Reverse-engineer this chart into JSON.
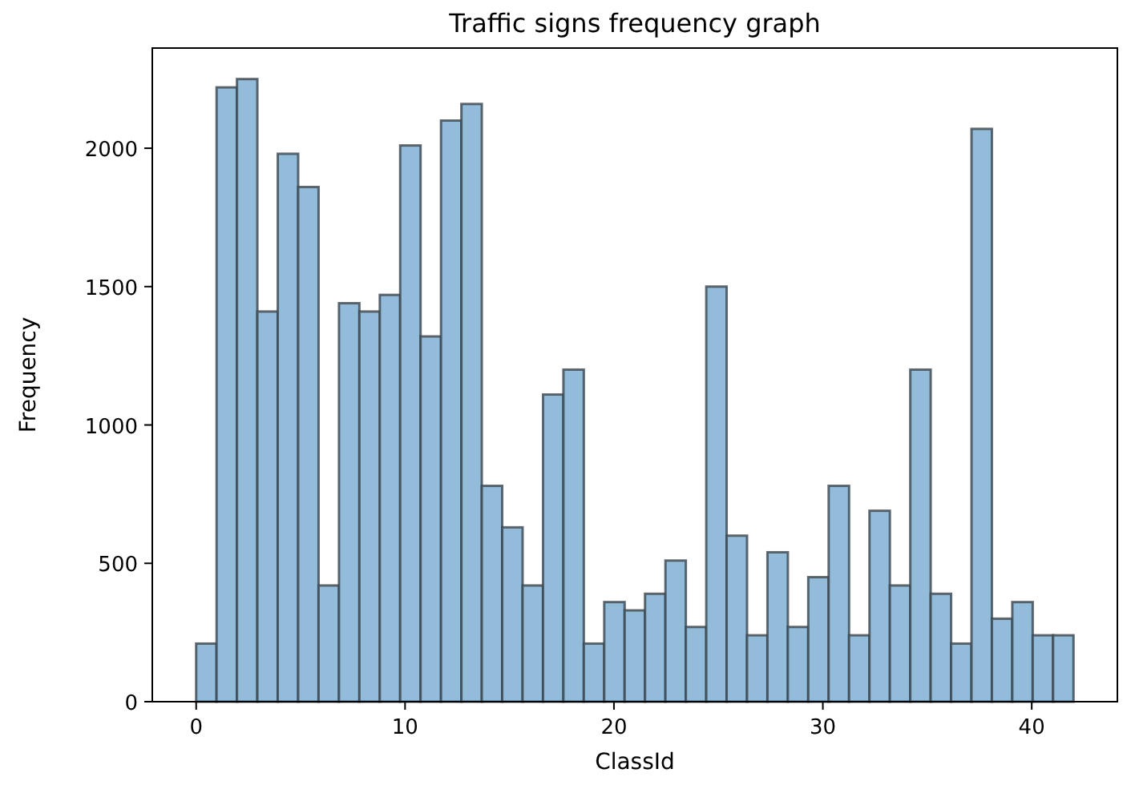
{
  "chart_data": {
    "type": "histogram",
    "title": "Traffic signs frequency graph",
    "xlabel": "ClassId",
    "ylabel": "Frequency",
    "color": "#93bcdb",
    "bins": [
      0,
      0.977,
      1.953,
      2.93,
      3.907,
      4.884,
      5.86,
      6.837,
      7.814,
      8.791,
      9.767,
      10.744,
      11.721,
      12.698,
      13.674,
      14.651,
      15.628,
      16.605,
      17.581,
      18.558,
      19.535,
      20.512,
      21.488,
      22.465,
      23.442,
      24.419,
      25.395,
      26.372,
      27.349,
      28.326,
      29.302,
      30.279,
      31.256,
      32.233,
      33.209,
      34.186,
      35.163,
      36.14,
      37.116,
      38.093,
      39.07,
      40.047,
      41.023,
      42
    ],
    "values": [
      210,
      2220,
      2250,
      1410,
      1980,
      1860,
      420,
      1440,
      1410,
      1470,
      2010,
      1320,
      2100,
      2160,
      780,
      630,
      420,
      1110,
      1200,
      210,
      360,
      330,
      390,
      510,
      270,
      1500,
      600,
      240,
      540,
      270,
      450,
      780,
      240,
      690,
      420,
      1200,
      390,
      210,
      2070,
      300,
      360,
      240,
      240
    ],
    "xlim": [
      -2.1,
      44.1
    ],
    "ylim": [
      0,
      2362
    ],
    "xticks": [
      0,
      10,
      20,
      30,
      40
    ],
    "yticks": [
      0,
      500,
      1000,
      1500,
      2000
    ],
    "grid": false
  }
}
